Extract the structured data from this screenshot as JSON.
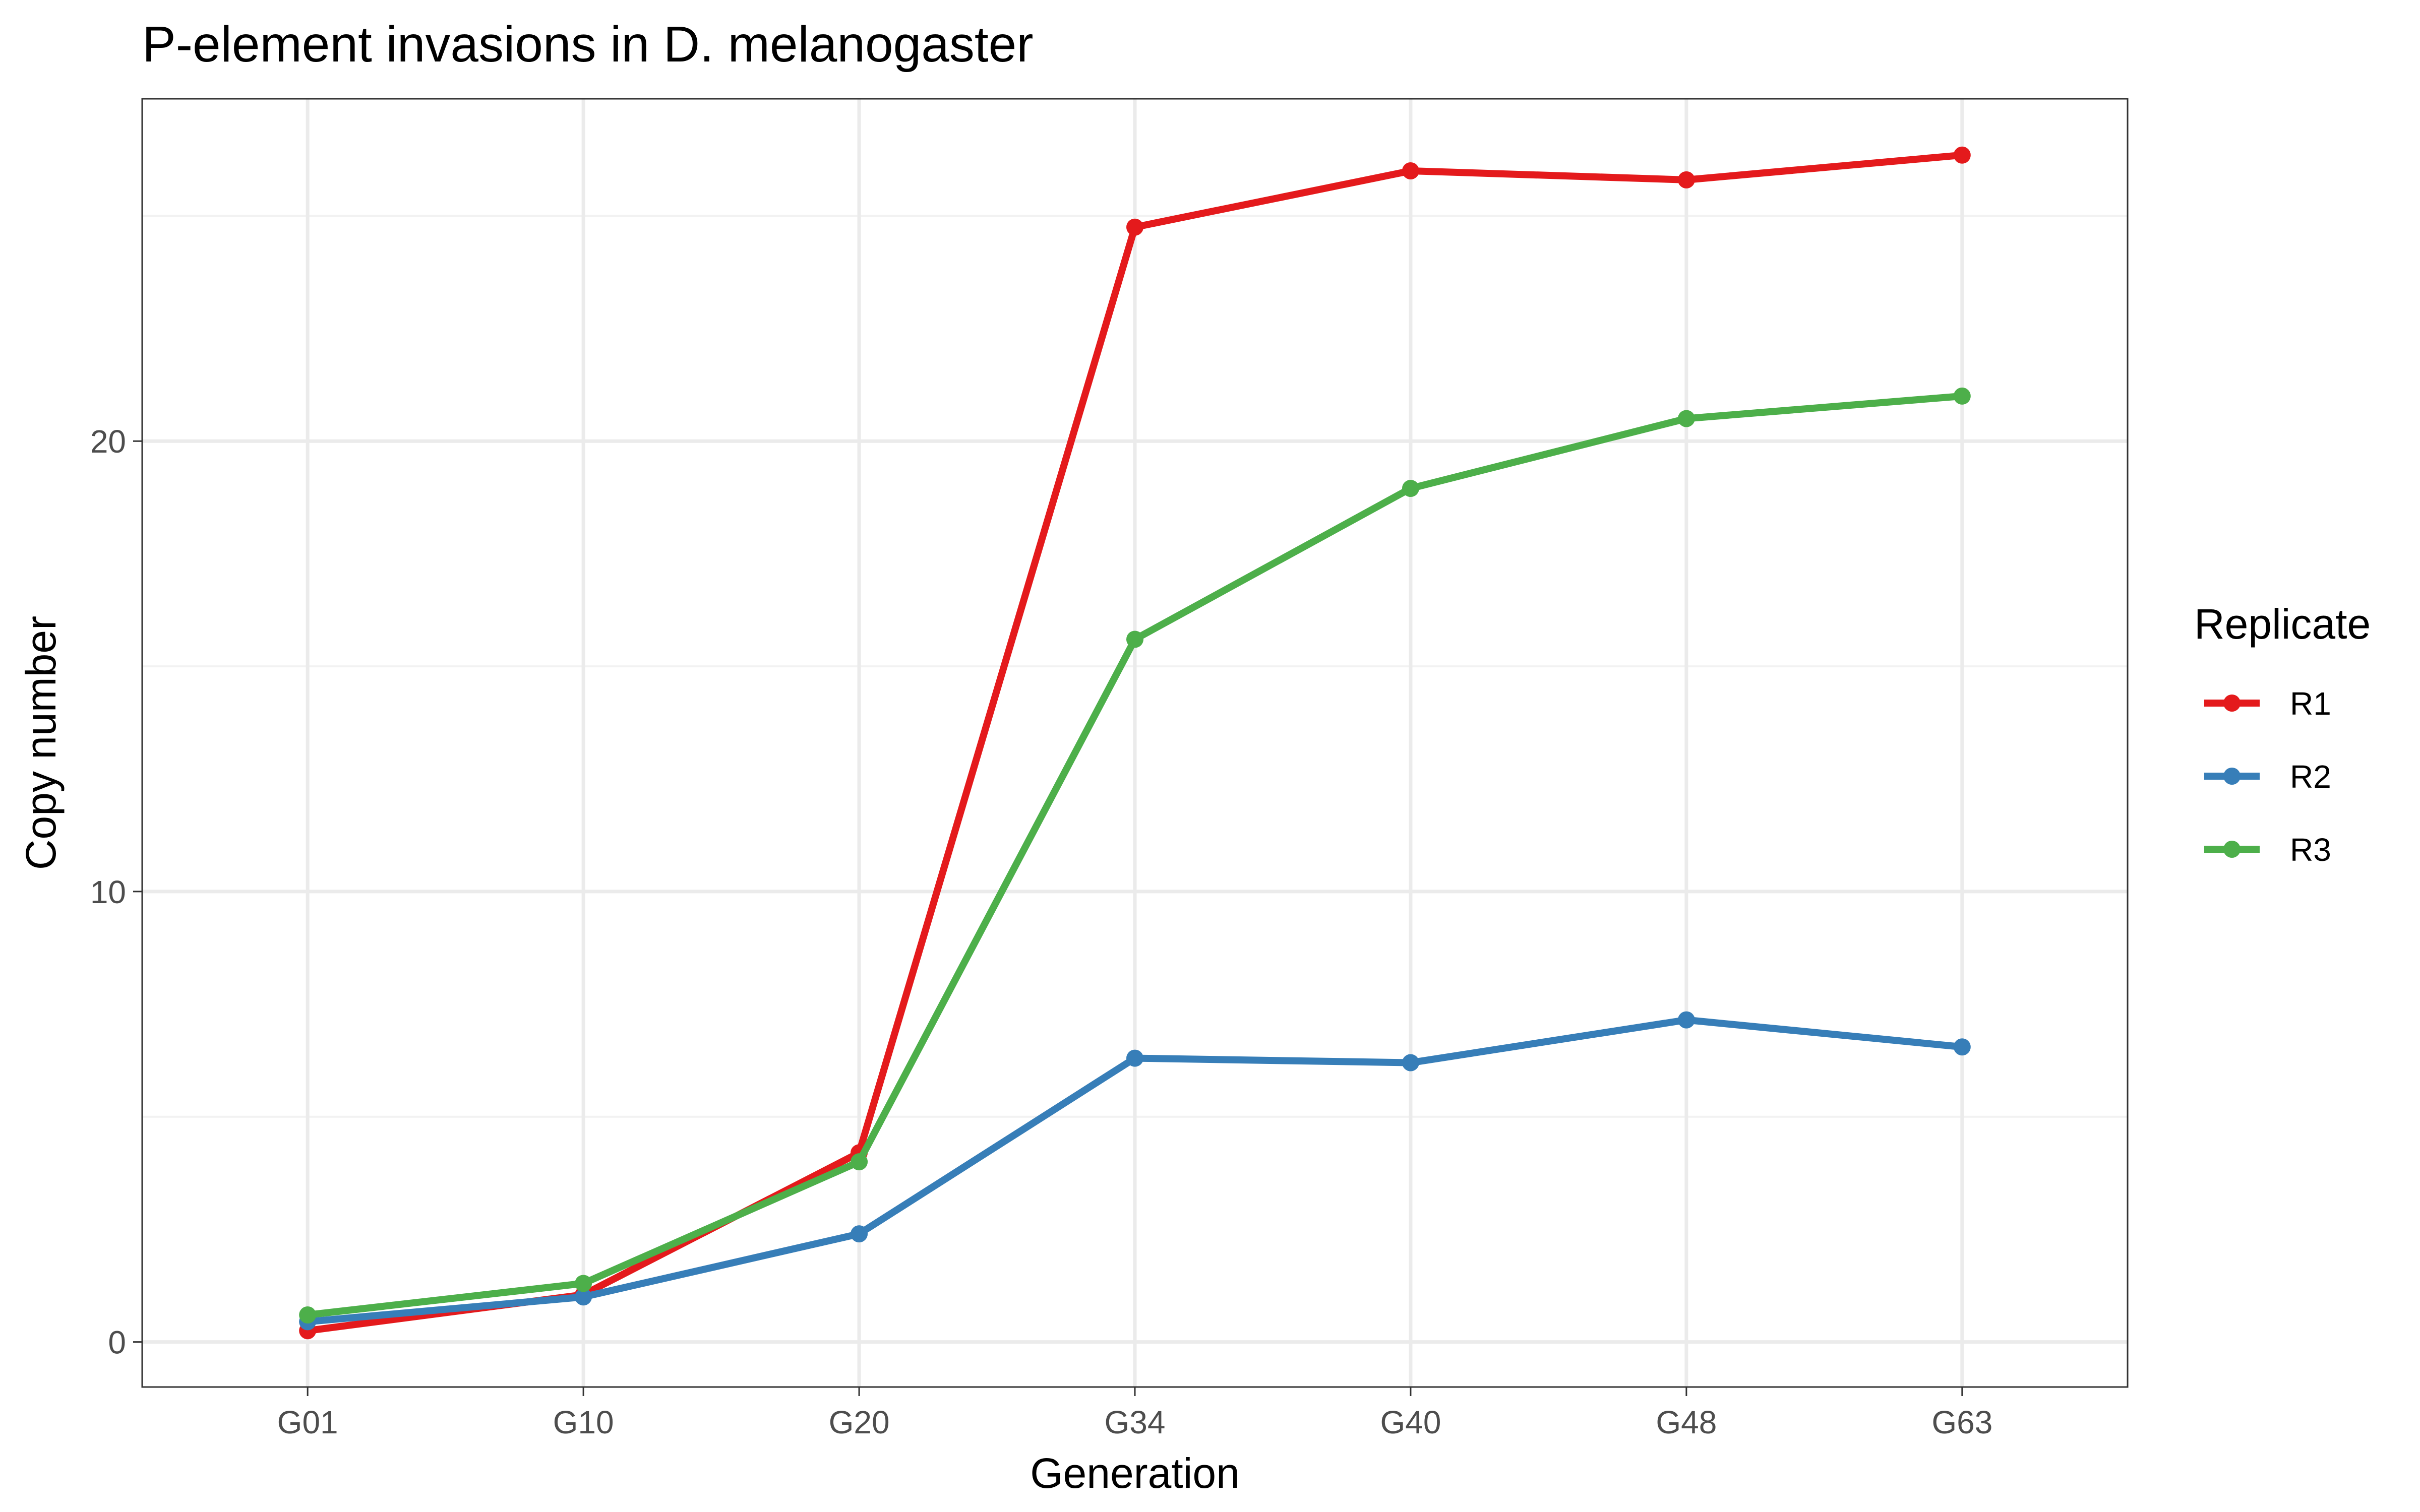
{
  "chart_data": {
    "type": "line",
    "title": "P-element invasions in D. melanogaster",
    "xlabel": "Generation",
    "ylabel": "Copy number",
    "categories": [
      "G01",
      "G10",
      "G20",
      "G34",
      "G40",
      "G48",
      "G63"
    ],
    "ylim": [
      -1,
      27.6
    ],
    "yticks": [
      0,
      10,
      20
    ],
    "grid": true,
    "legend": {
      "title": "Replicate",
      "placement": "right"
    },
    "series": [
      {
        "name": "R1",
        "color": "#e41a1c",
        "values": [
          0.25,
          1.05,
          4.2,
          24.75,
          26.0,
          25.8,
          26.35
        ]
      },
      {
        "name": "R2",
        "color": "#377eb8",
        "values": [
          0.45,
          1.0,
          2.4,
          6.3,
          6.2,
          7.15,
          6.55
        ]
      },
      {
        "name": "R3",
        "color": "#4daf4a",
        "values": [
          0.6,
          1.3,
          4.0,
          15.6,
          18.95,
          20.5,
          21.0
        ]
      }
    ]
  }
}
